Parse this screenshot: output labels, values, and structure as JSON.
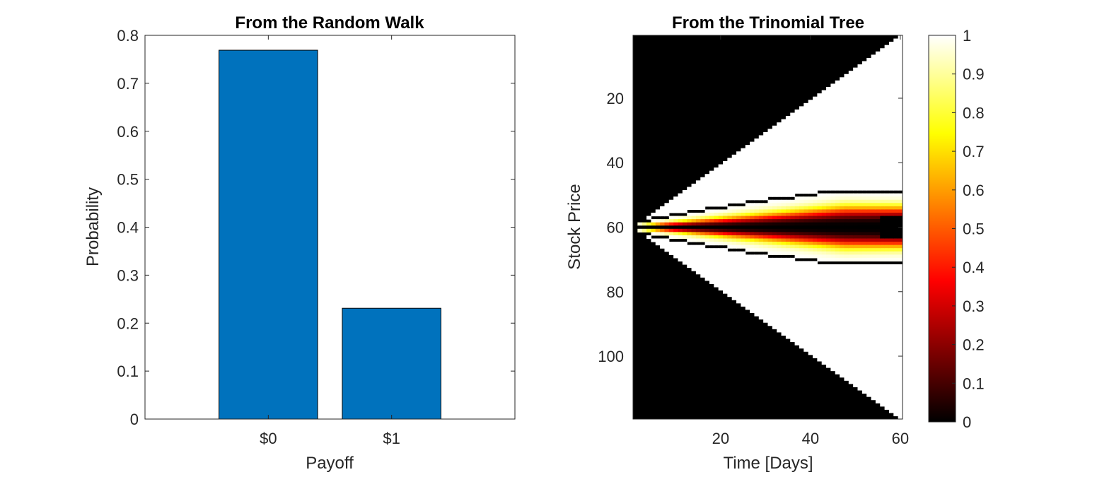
{
  "chart_data": [
    {
      "type": "bar",
      "title": "From the Random Walk",
      "xlabel": "Payoff",
      "ylabel": "Probability",
      "categories": [
        "$0",
        "$1"
      ],
      "values": [
        0.769,
        0.231
      ],
      "xlim": [
        0,
        3
      ],
      "ylim": [
        0,
        0.8
      ],
      "yticks": [
        0,
        0.1,
        0.2,
        0.3,
        0.4,
        0.5,
        0.6,
        0.7,
        0.8
      ],
      "ytick_labels": [
        "0",
        "0.1",
        "0.2",
        "0.3",
        "0.4",
        "0.5",
        "0.6",
        "0.7",
        "0.8"
      ],
      "bar_color": "#0072BD",
      "edge_color": "#000000",
      "grid": false
    },
    {
      "type": "heatmap",
      "title": "From the Trinomial Tree",
      "xlabel": "Time [Days]",
      "ylabel": "Stock Price",
      "xlim": [
        0.5,
        60.5
      ],
      "ylim": [
        0.5,
        119.5
      ],
      "y_direction": "reverse",
      "xticks": [
        20,
        40,
        60
      ],
      "xtick_labels": [
        "20",
        "40",
        "60"
      ],
      "yticks": [
        20,
        40,
        60,
        80,
        100
      ],
      "ytick_labels": [
        "20",
        "40",
        "60",
        "80",
        "100"
      ],
      "center_price": 60,
      "colormap": "hot",
      "colorbar": {
        "range": [
          0,
          1
        ],
        "ticks": [
          0,
          0.1,
          0.2,
          0.3,
          0.4,
          0.5,
          0.6,
          0.7,
          0.8,
          0.9,
          1
        ],
        "tick_labels": [
          "0",
          "0.1",
          "0.2",
          "0.3",
          "0.4",
          "0.5",
          "0.6",
          "0.7",
          "0.8",
          "0.9",
          "1"
        ],
        "location": "right"
      },
      "description_of_values": {
        "outside_tree": 0,
        "far_from_center_inside_tree": 1,
        "near_center": 0,
        "center_band_at_day_60": [
          52,
          64
        ]
      }
    }
  ]
}
